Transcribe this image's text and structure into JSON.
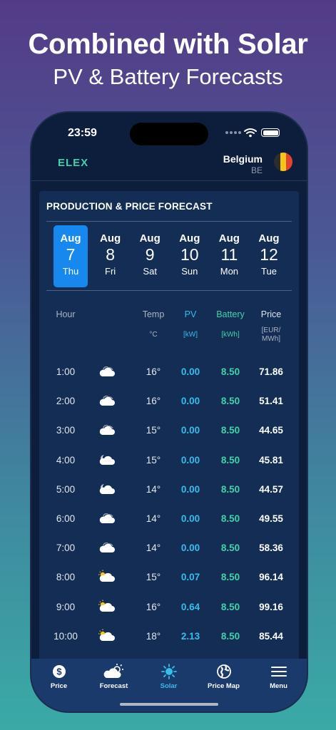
{
  "promo": {
    "headline": "Combined with Solar",
    "subheadline": "PV & Battery Forecasts"
  },
  "status_bar": {
    "time": "23:59"
  },
  "header": {
    "logo": "ELEX",
    "country_name": "Belgium",
    "country_code": "BE",
    "flag_colors": [
      "#2d2d2d",
      "#f5c518",
      "#e2452f"
    ]
  },
  "card": {
    "title": "PRODUCTION & PRICE FORECAST",
    "days": [
      {
        "month": "Aug",
        "date": "7",
        "weekday": "Thu",
        "selected": true
      },
      {
        "month": "Aug",
        "date": "8",
        "weekday": "Fri",
        "selected": false
      },
      {
        "month": "Aug",
        "date": "9",
        "weekday": "Sat",
        "selected": false
      },
      {
        "month": "Aug",
        "date": "10",
        "weekday": "Sun",
        "selected": false
      },
      {
        "month": "Aug",
        "date": "11",
        "weekday": "Mon",
        "selected": false
      },
      {
        "month": "Aug",
        "date": "12",
        "weekday": "Tue",
        "selected": false
      }
    ],
    "table": {
      "headers": {
        "hour": "Hour",
        "temp": "Temp",
        "pv": "PV",
        "battery": "Battery",
        "price": "Price"
      },
      "units": {
        "temp": "°C",
        "pv": "[kW]",
        "battery": "[kWh]",
        "price_line1": "[EUR/",
        "price_line2": "MWh]"
      },
      "rows": [
        {
          "hour": "1:00",
          "icon": "cloud-night-icon",
          "temp": "16°",
          "pv": "0.00",
          "battery": "8.50",
          "price": "71.86"
        },
        {
          "hour": "2:00",
          "icon": "cloud-night-icon",
          "temp": "16°",
          "pv": "0.00",
          "battery": "8.50",
          "price": "51.41"
        },
        {
          "hour": "3:00",
          "icon": "cloud-night-icon",
          "temp": "15°",
          "pv": "0.00",
          "battery": "8.50",
          "price": "44.65"
        },
        {
          "hour": "4:00",
          "icon": "cloud-moon-icon",
          "temp": "15°",
          "pv": "0.00",
          "battery": "8.50",
          "price": "45.81"
        },
        {
          "hour": "5:00",
          "icon": "cloud-moon-icon",
          "temp": "14°",
          "pv": "0.00",
          "battery": "8.50",
          "price": "44.57"
        },
        {
          "hour": "6:00",
          "icon": "cloud-night-icon",
          "temp": "14°",
          "pv": "0.00",
          "battery": "8.50",
          "price": "49.55"
        },
        {
          "hour": "7:00",
          "icon": "cloud-night-icon",
          "temp": "14°",
          "pv": "0.00",
          "battery": "8.50",
          "price": "58.36"
        },
        {
          "hour": "8:00",
          "icon": "cloud-sun-icon",
          "temp": "15°",
          "pv": "0.07",
          "battery": "8.50",
          "price": "96.14"
        },
        {
          "hour": "9:00",
          "icon": "cloud-sun-icon",
          "temp": "16°",
          "pv": "0.64",
          "battery": "8.50",
          "price": "99.16"
        },
        {
          "hour": "10:00",
          "icon": "cloud-sun-icon",
          "temp": "18°",
          "pv": "2.13",
          "battery": "8.50",
          "price": "85.44"
        }
      ]
    }
  },
  "tabbar": {
    "items": [
      {
        "label": "Price",
        "icon": "dollar-icon",
        "active": false
      },
      {
        "label": "Forecast",
        "icon": "cloud-sun-icon",
        "active": false
      },
      {
        "label": "Solar",
        "icon": "sun-icon",
        "active": true
      },
      {
        "label": "Price Map",
        "icon": "globe-icon",
        "active": false
      },
      {
        "label": "Menu",
        "icon": "menu-icon",
        "active": false
      }
    ]
  },
  "colors": {
    "pv": "#33bfe9",
    "battery": "#3fd3a8",
    "selected_day": "#1688ee",
    "card_bg": "#132d55",
    "tabbar_bg": "#1a3a6c"
  }
}
